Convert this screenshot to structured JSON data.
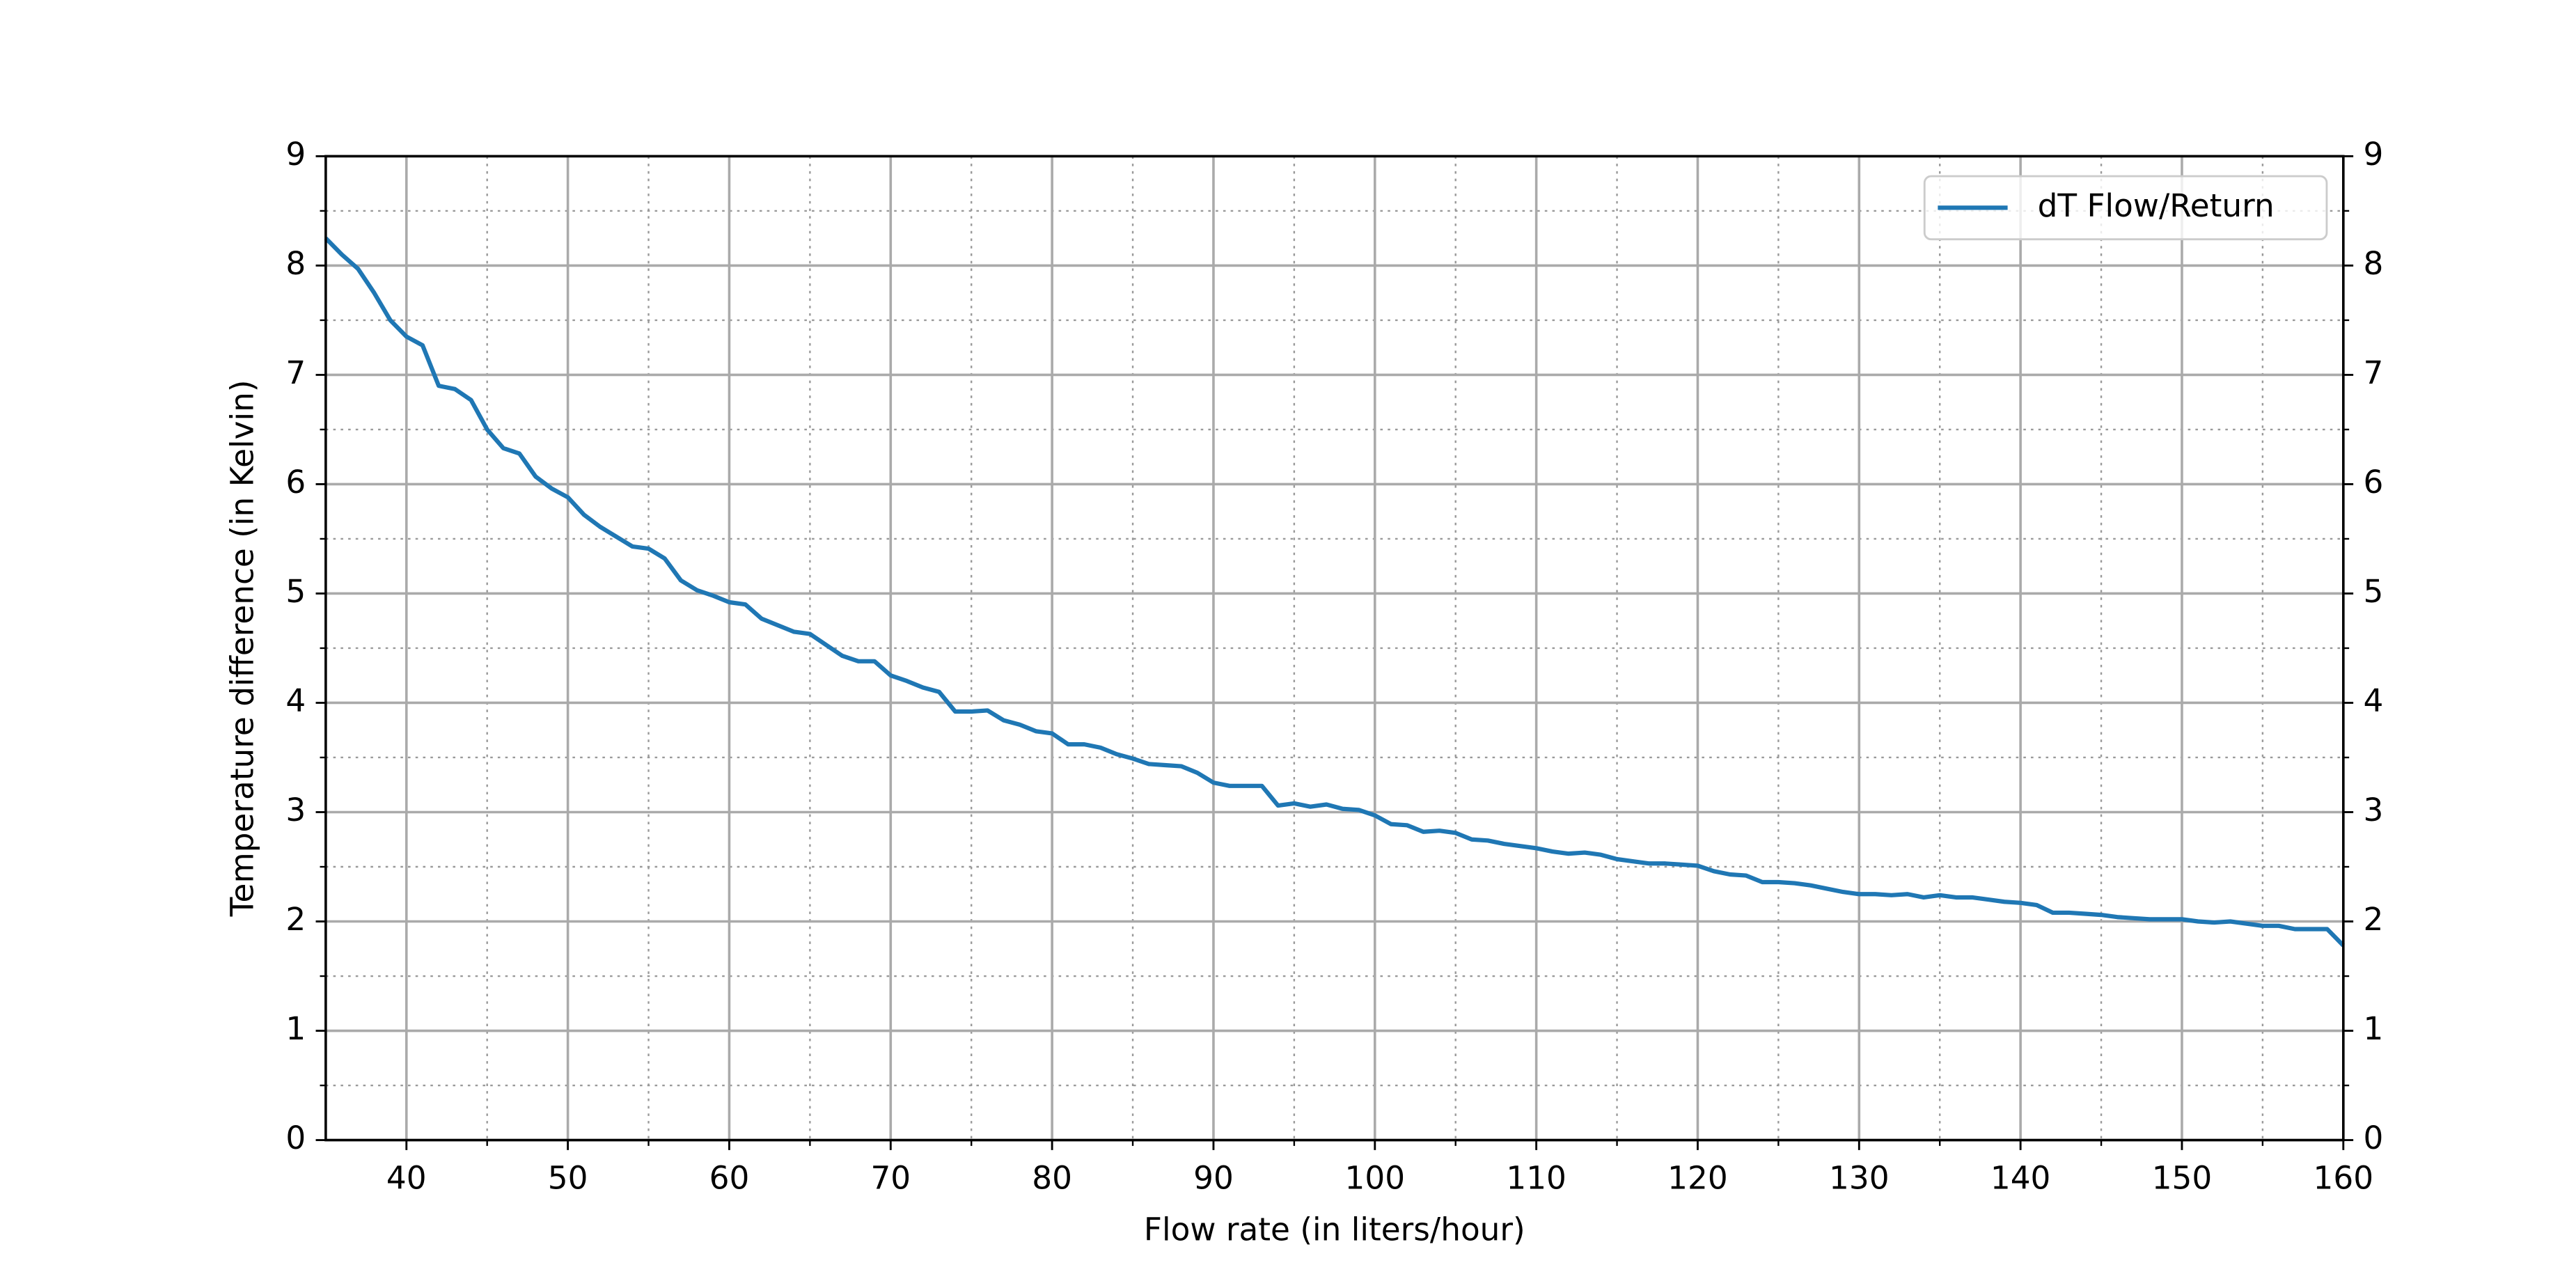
{
  "chart_data": {
    "type": "line",
    "xlabel": "Flow rate (in liters/hour)",
    "ylabel": "Temperature difference (in Kelvin)",
    "x": [
      35,
      36,
      37,
      38,
      39,
      40,
      41,
      42,
      43,
      44,
      45,
      46,
      47,
      48,
      49,
      50,
      51,
      52,
      53,
      54,
      55,
      56,
      57,
      58,
      59,
      60,
      61,
      62,
      63,
      64,
      65,
      66,
      67,
      68,
      69,
      70,
      71,
      72,
      73,
      74,
      75,
      76,
      77,
      78,
      79,
      80,
      81,
      82,
      83,
      84,
      85,
      86,
      87,
      88,
      89,
      90,
      91,
      92,
      93,
      94,
      95,
      96,
      97,
      98,
      99,
      100,
      101,
      102,
      103,
      104,
      105,
      106,
      107,
      108,
      109,
      110,
      111,
      112,
      113,
      114,
      115,
      116,
      117,
      118,
      119,
      120,
      121,
      122,
      123,
      124,
      125,
      126,
      127,
      128,
      129,
      130,
      131,
      132,
      133,
      134,
      135,
      136,
      137,
      138,
      139,
      140,
      141,
      142,
      143,
      144,
      145,
      146,
      147,
      148,
      149,
      150,
      151,
      152,
      153,
      154,
      155,
      156,
      157,
      158,
      159,
      160
    ],
    "series": [
      {
        "name": "dT Flow/Return",
        "color": "#1f77b4",
        "values": [
          8.25,
          8.1,
          7.97,
          7.75,
          7.5,
          7.35,
          7.27,
          6.9,
          6.87,
          6.77,
          6.5,
          6.33,
          6.28,
          6.07,
          5.96,
          5.88,
          5.72,
          5.61,
          5.52,
          5.43,
          5.41,
          5.32,
          5.12,
          5.03,
          4.98,
          4.92,
          4.9,
          4.77,
          4.71,
          4.65,
          4.63,
          4.53,
          4.43,
          4.38,
          4.38,
          4.25,
          4.2,
          4.14,
          4.1,
          3.92,
          3.92,
          3.93,
          3.84,
          3.8,
          3.74,
          3.72,
          3.62,
          3.62,
          3.59,
          3.53,
          3.49,
          3.44,
          3.43,
          3.42,
          3.36,
          3.27,
          3.24,
          3.24,
          3.24,
          3.06,
          3.08,
          3.05,
          3.07,
          3.03,
          3.02,
          2.97,
          2.89,
          2.88,
          2.82,
          2.83,
          2.81,
          2.75,
          2.74,
          2.71,
          2.69,
          2.67,
          2.64,
          2.62,
          2.63,
          2.61,
          2.57,
          2.55,
          2.53,
          2.53,
          2.52,
          2.51,
          2.46,
          2.43,
          2.42,
          2.36,
          2.36,
          2.35,
          2.33,
          2.3,
          2.27,
          2.25,
          2.25,
          2.24,
          2.25,
          2.22,
          2.24,
          2.22,
          2.22,
          2.2,
          2.18,
          2.17,
          2.15,
          2.08,
          2.08,
          2.07,
          2.06,
          2.04,
          2.03,
          2.02,
          2.02,
          2.02,
          2.0,
          1.99,
          2.0,
          1.98,
          1.96,
          1.96,
          1.93,
          1.93,
          1.93,
          1.78
        ]
      }
    ],
    "xlim": [
      35,
      160
    ],
    "xticks": [
      40,
      50,
      60,
      70,
      80,
      90,
      100,
      110,
      120,
      130,
      140,
      150,
      160
    ],
    "xminor_ticks": [
      45,
      55,
      65,
      75,
      85,
      95,
      105,
      115,
      125,
      135,
      145,
      155
    ],
    "ylim": [
      0,
      9
    ],
    "yticks": [
      0,
      1,
      2,
      3,
      4,
      5,
      6,
      7,
      8,
      9
    ],
    "yminor_ticks": [
      0.5,
      1.5,
      2.5,
      3.5,
      4.5,
      5.5,
      6.5,
      7.5,
      8.5
    ],
    "grid": true,
    "legend": "upper right"
  }
}
